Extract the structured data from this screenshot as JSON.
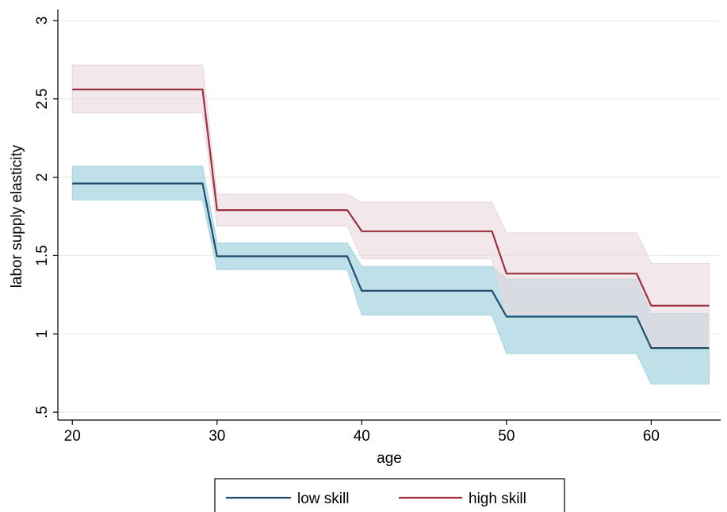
{
  "chart_data": {
    "type": "line",
    "title": "",
    "xlabel": "age",
    "ylabel": "labor supply elasticity",
    "xlim": [
      19,
      64.8
    ],
    "ylim": [
      0.45,
      3.05
    ],
    "xticks": [
      20,
      30,
      40,
      50,
      60
    ],
    "xtick_labels": [
      "20",
      "30",
      "40",
      "50",
      "60"
    ],
    "yticks": [
      0.5,
      1,
      1.5,
      2,
      2.5,
      3
    ],
    "ytick_labels": [
      ".5",
      "1",
      "1.5",
      "2",
      "2.5",
      "3"
    ],
    "grid": "horizontal",
    "legend_position": "bottom",
    "series": [
      {
        "name": "low skill",
        "color": "#1f4e6e",
        "band_color": "#a9d6e2",
        "x": [
          20,
          29,
          30,
          39,
          40,
          49,
          50,
          59,
          60,
          64
        ],
        "values": [
          1.96,
          1.96,
          1.495,
          1.495,
          1.275,
          1.275,
          1.11,
          1.11,
          0.91,
          0.91
        ],
        "lower": [
          1.855,
          1.855,
          1.41,
          1.41,
          1.12,
          1.12,
          0.875,
          0.875,
          0.68,
          0.68
        ],
        "upper": [
          2.07,
          2.07,
          1.58,
          1.58,
          1.43,
          1.43,
          1.35,
          1.35,
          1.13,
          1.13
        ]
      },
      {
        "name": "high skill",
        "color": "#9b2f3b",
        "band_color": "#ead9dd",
        "x": [
          20,
          29,
          30,
          39,
          40,
          49,
          50,
          59,
          60,
          64
        ],
        "values": [
          2.56,
          2.56,
          1.79,
          1.79,
          1.655,
          1.655,
          1.385,
          1.385,
          1.18,
          1.18
        ],
        "lower": [
          2.41,
          2.41,
          1.69,
          1.69,
          1.48,
          1.48,
          1.13,
          1.13,
          0.92,
          0.92
        ],
        "upper": [
          2.715,
          2.715,
          1.89,
          1.89,
          1.84,
          1.84,
          1.645,
          1.645,
          1.45,
          1.45
        ]
      }
    ]
  }
}
